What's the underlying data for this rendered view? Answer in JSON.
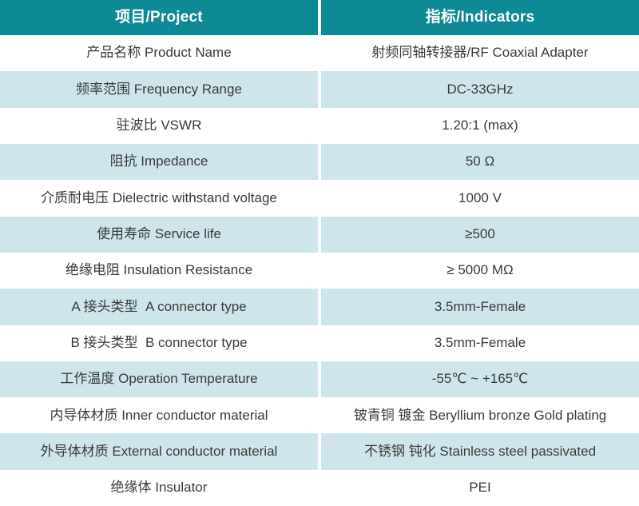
{
  "colors": {
    "header_bg": "#0d8a96",
    "header_text": "#ffffff",
    "alt_row_bg": "#cee6eb",
    "row_bg": "#ffffff",
    "text": "#3a3a3a"
  },
  "table": {
    "header": {
      "col1": "项目/Project",
      "col2": "指标/Indicators"
    },
    "rows": [
      {
        "label": "产品名称 Product Name",
        "value": "射频同轴转接器/RF Coaxial Adapter"
      },
      {
        "label": "频率范围 Frequency Range",
        "value": "DC-33GHz"
      },
      {
        "label": "驻波比 VSWR",
        "value": "1.20:1 (max)"
      },
      {
        "label": "阻抗 Impedance",
        "value": "50 Ω"
      },
      {
        "label": "介质耐电压 Dielectric withstand voltage",
        "value": "1000 V"
      },
      {
        "label": "使用寿命 Service life",
        "value": "≥500"
      },
      {
        "label": "绝缘电阻 Insulation Resistance",
        "value": "≥ 5000 MΩ"
      },
      {
        "label": "A 接头类型  A connector type",
        "value": "3.5mm-Female"
      },
      {
        "label": "B 接头类型  B connector type",
        "value": "3.5mm-Female"
      },
      {
        "label": "工作温度 Operation Temperature",
        "value": "-55℃ ~ +165℃"
      },
      {
        "label": "内导体材质 Inner conductor material",
        "value": "铍青铜 镀金 Beryllium bronze Gold plating"
      },
      {
        "label": "外导体材质 External conductor material",
        "value": "不锈钢 钝化 Stainless steel passivated"
      },
      {
        "label": "绝缘体 Insulator",
        "value": "PEI"
      }
    ]
  }
}
